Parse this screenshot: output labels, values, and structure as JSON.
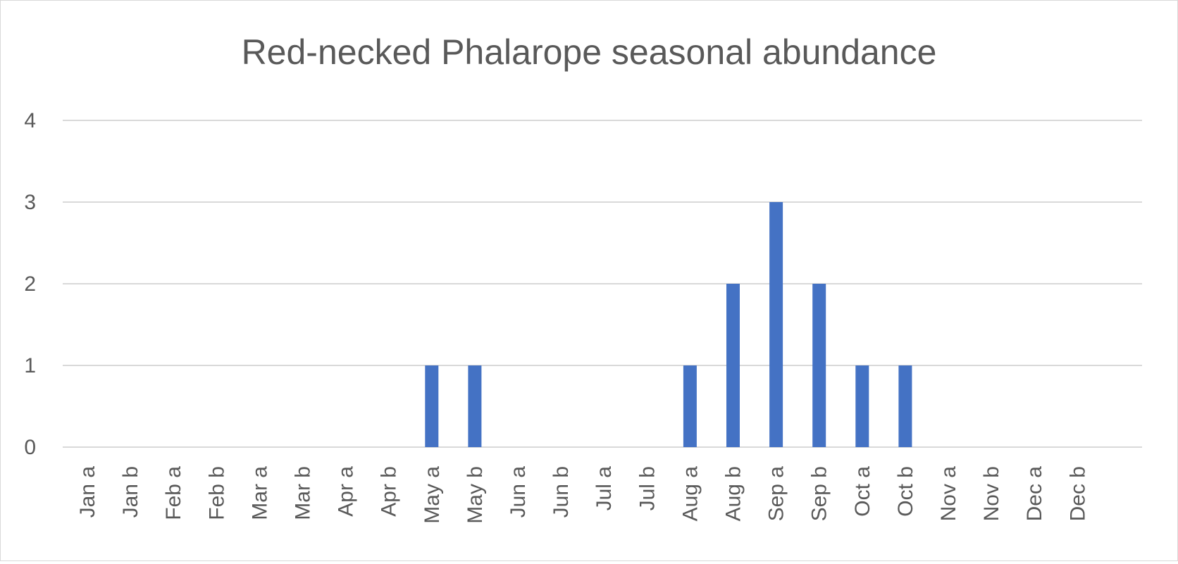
{
  "chart_data": {
    "type": "bar",
    "title": "Red-necked Phalarope seasonal abundance",
    "xlabel": "",
    "ylabel": "",
    "categories": [
      "Jan a",
      "Jan b",
      "Feb a",
      "Feb b",
      "Mar a",
      "Mar b",
      "Apr a",
      "Apr b",
      "May a",
      "May b",
      "Jun a",
      "Jun b",
      "Jul a",
      "Jul b",
      "Aug a",
      "Aug b",
      "Sep a",
      "Sep b",
      "Oct a",
      "Oct b",
      "Nov a",
      "Nov b",
      "Dec a",
      "Dec b"
    ],
    "values": [
      0,
      0,
      0,
      0,
      0,
      0,
      0,
      0,
      1,
      1,
      0,
      0,
      0,
      0,
      1,
      2,
      3,
      2,
      1,
      1,
      0,
      0,
      0,
      0
    ],
    "ylim": [
      0,
      4
    ],
    "yticks": [
      0,
      1,
      2,
      3,
      4
    ],
    "grid": true,
    "legend": "none",
    "bar_color": "#4472C4",
    "grid_color": "#d9d9d9",
    "text_color": "#595959"
  }
}
